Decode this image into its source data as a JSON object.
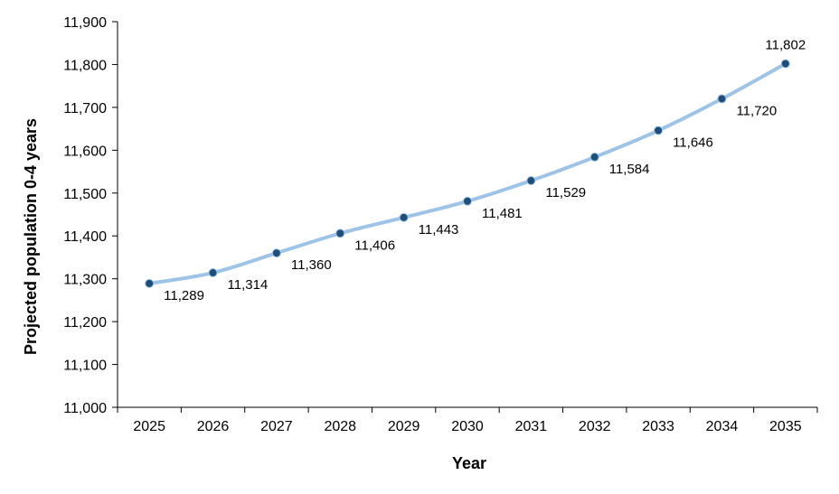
{
  "chart_data": {
    "type": "line",
    "x": [
      "2025",
      "2026",
      "2027",
      "2028",
      "2029",
      "2030",
      "2031",
      "2032",
      "2033",
      "2034",
      "2035"
    ],
    "series": [
      {
        "values": [
          11289,
          11314,
          11360,
          11406,
          11443,
          11481,
          11529,
          11584,
          11646,
          11720,
          11802
        ],
        "data_labels": [
          "11,289",
          "11,314",
          "11,360",
          "11,406",
          "11,443",
          "11,481",
          "11,529",
          "11,584",
          "11,646",
          "11,720",
          "11,802"
        ],
        "line_color": "#9dc3e6",
        "marker_color": "#1f4e79"
      }
    ],
    "xlabel": "Year",
    "ylabel": "Projected population 0-4 years",
    "ylim": [
      11000,
      11900
    ],
    "yticks": [
      11000,
      11100,
      11200,
      11300,
      11400,
      11500,
      11600,
      11700,
      11800,
      11900
    ],
    "ytick_labels": [
      "11,000",
      "11,100",
      "11,200",
      "11,300",
      "11,400",
      "11,500",
      "11,600",
      "11,700",
      "11,800",
      "11,900"
    ],
    "grid": false,
    "legend": "none",
    "axis_color": "#000000"
  }
}
